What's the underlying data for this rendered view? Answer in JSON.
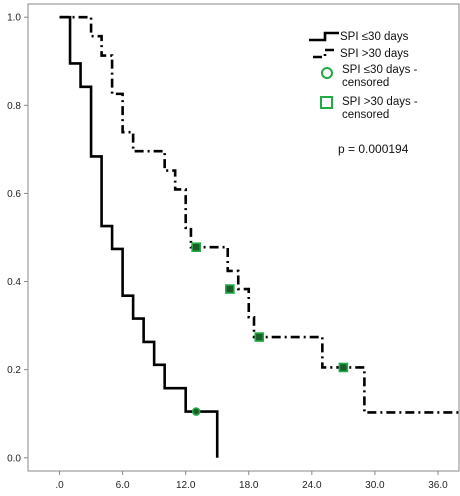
{
  "chart_data": {
    "type": "line",
    "subtype": "kaplan-meier",
    "xlim": [
      -3,
      38
    ],
    "ylim": [
      -0.03,
      1.03
    ],
    "xticks": [
      ".0",
      "6.0",
      "12.0",
      "18.0",
      "24.0",
      "30.0",
      "36.0"
    ],
    "xtick_values": [
      0,
      6,
      12,
      18,
      24,
      30,
      36
    ],
    "yticks": [
      "0.0",
      "0.2",
      "0.4",
      "0.6",
      "0.8",
      "1.0"
    ],
    "ytick_values": [
      0,
      0.2,
      0.4,
      0.6,
      0.8,
      1.0
    ],
    "grid": false,
    "legend_position": "top-right",
    "annotation": "p = 0.000194",
    "series": [
      {
        "name": "SPI ≤30 days",
        "line_style": "solid",
        "color": "#000000",
        "steps": [
          {
            "x": 0,
            "y": 1.0
          },
          {
            "x": 1,
            "y": 0.895
          },
          {
            "x": 2,
            "y": 0.842
          },
          {
            "x": 3,
            "y": 0.684
          },
          {
            "x": 4,
            "y": 0.526
          },
          {
            "x": 5,
            "y": 0.474
          },
          {
            "x": 6,
            "y": 0.368
          },
          {
            "x": 7,
            "y": 0.316
          },
          {
            "x": 8,
            "y": 0.263
          },
          {
            "x": 9,
            "y": 0.211
          },
          {
            "x": 10,
            "y": 0.158
          },
          {
            "x": 12,
            "y": 0.105
          },
          {
            "x": 15,
            "y": 0.0
          }
        ],
        "censored": [
          {
            "x": 13,
            "y": 0.105
          }
        ]
      },
      {
        "name": "SPI >30 days",
        "line_style": "dash-dot",
        "color": "#000000",
        "steps": [
          {
            "x": 0,
            "y": 1.0
          },
          {
            "x": 3,
            "y": 0.957
          },
          {
            "x": 4,
            "y": 0.913
          },
          {
            "x": 5,
            "y": 0.826
          },
          {
            "x": 6,
            "y": 0.739
          },
          {
            "x": 7,
            "y": 0.696
          },
          {
            "x": 10,
            "y": 0.652
          },
          {
            "x": 11,
            "y": 0.609
          },
          {
            "x": 12,
            "y": 0.522
          },
          {
            "x": 12.5,
            "y": 0.478
          },
          {
            "x": 16,
            "y": 0.424
          },
          {
            "x": 17,
            "y": 0.383
          },
          {
            "x": 18,
            "y": 0.319
          },
          {
            "x": 18.5,
            "y": 0.274
          },
          {
            "x": 25,
            "y": 0.205
          },
          {
            "x": 29,
            "y": 0.103
          }
        ],
        "end_x": 38,
        "censored": [
          {
            "x": 13,
            "y": 0.478
          },
          {
            "x": 16.2,
            "y": 0.383
          },
          {
            "x": 19,
            "y": 0.274
          },
          {
            "x": 27,
            "y": 0.205
          }
        ]
      }
    ],
    "legend": [
      {
        "label": "SPI ≤30 days",
        "marker": "solid-line"
      },
      {
        "label": "SPI >30 days",
        "marker": "dash-dot-line"
      },
      {
        "label_lines": [
          "SPI ≤30 days -",
          "censored"
        ],
        "marker": "circle",
        "color": "#22aa44"
      },
      {
        "label_lines": [
          "SPI >30 days -",
          "censored"
        ],
        "marker": "square",
        "color": "#22aa44"
      }
    ]
  }
}
